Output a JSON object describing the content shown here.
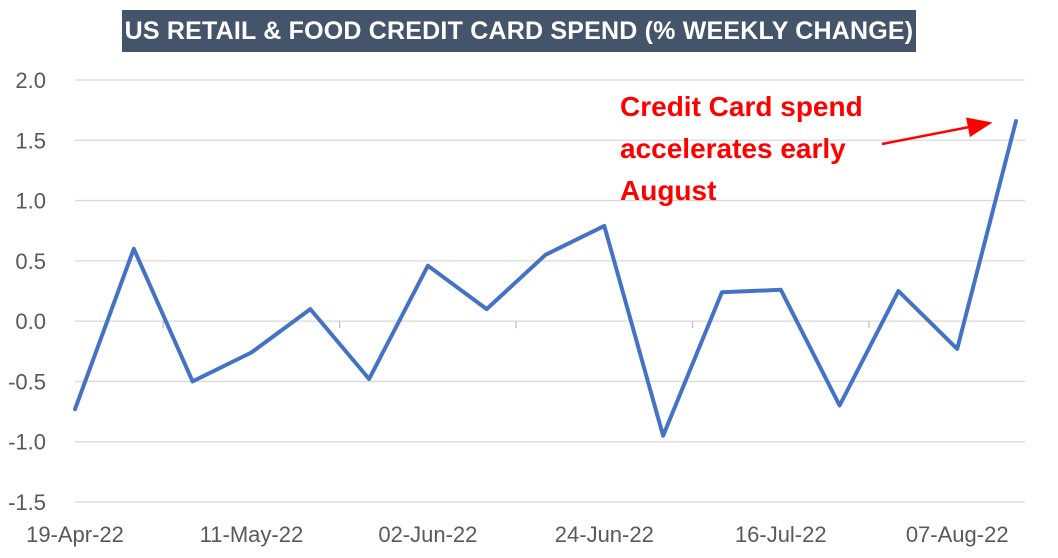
{
  "chart_data": {
    "type": "line",
    "title": "US RETAIL & FOOD CREDIT CARD SPEND (% WEEKLY CHANGE)",
    "xlabel": "",
    "ylabel": "",
    "ylim": [
      -1.5,
      2.0
    ],
    "yticks": [
      "2.0",
      "1.5",
      "1.0",
      "0.5",
      "0.0",
      "-0.5",
      "-1.0",
      "-1.5"
    ],
    "xtick_labels": [
      "19-Apr-22",
      "11-May-22",
      "02-Jun-22",
      "24-Jun-22",
      "16-Jul-22",
      "07-Aug-22"
    ],
    "grid": true,
    "series": [
      {
        "color": "#4472c4",
        "x": [
          "19-Apr-22",
          "26-Apr-22",
          "03-May-22",
          "10-May-22",
          "17-May-22",
          "24-May-22",
          "31-May-22",
          "07-Jun-22",
          "14-Jun-22",
          "21-Jun-22",
          "28-Jun-22",
          "05-Jul-22",
          "12-Jul-22",
          "19-Jul-22",
          "26-Jul-22",
          "02-Aug-22",
          "09-Aug-22"
        ],
        "values": [
          -0.73,
          0.6,
          -0.5,
          -0.26,
          0.1,
          -0.48,
          0.46,
          0.1,
          0.55,
          0.79,
          -0.95,
          0.24,
          0.26,
          -0.7,
          0.25,
          -0.23,
          1.66
        ]
      }
    ],
    "annotation": {
      "text_lines": [
        "Credit Card spend",
        "accelerates early",
        "August"
      ],
      "color": "#ff0000"
    }
  }
}
